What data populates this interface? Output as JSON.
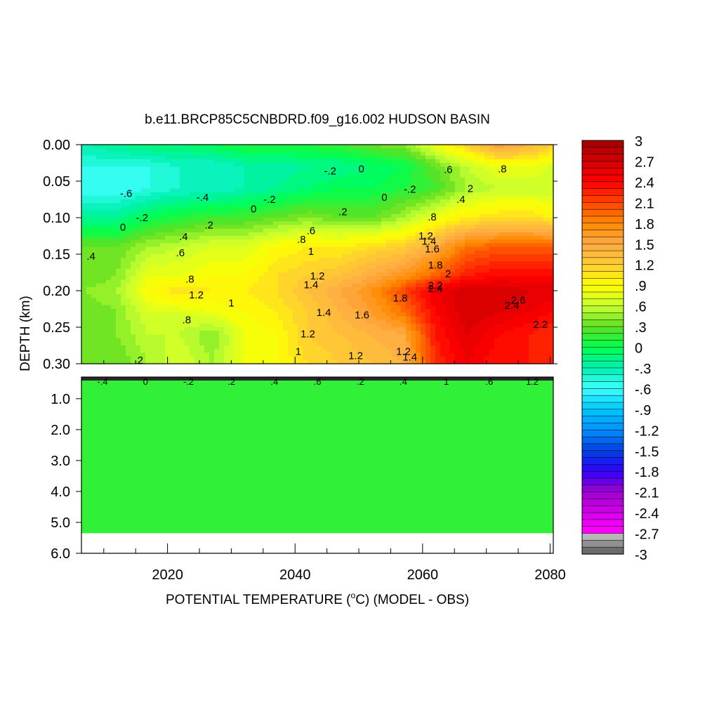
{
  "chart_data": {
    "type": "heatmap",
    "title": "b.e11.BRCP85C5CNBDRD.f09_g16.002 HUDSON BASIN",
    "xlabel_parts": [
      "POTENTIAL TEMPERATURE (",
      "o",
      "C) (MODEL - OBS)"
    ],
    "ylabel": "DEPTH (km)",
    "x_ticks": [
      "2020",
      "2040",
      "2060",
      "2080"
    ],
    "x_tick_values": [
      2020,
      2040,
      2060,
      2080
    ],
    "xlim": [
      2006.5,
      2080.5
    ],
    "upper_panel": {
      "ylim": [
        0.0,
        0.3
      ],
      "y_ticks": [
        "0.00",
        "0.05",
        "0.10",
        "0.15",
        "0.20",
        "0.25",
        "0.30"
      ],
      "y_tick_values": [
        0.0,
        0.05,
        0.1,
        0.15,
        0.2,
        0.25,
        0.3
      ]
    },
    "lower_panel": {
      "ylim": [
        0.3,
        6.0
      ],
      "y_ticks": [
        "1.0",
        "2.0",
        "3.0",
        "4.0",
        "5.0",
        "6.0"
      ],
      "y_tick_values": [
        1,
        2,
        3,
        4,
        5,
        6
      ],
      "data_bottom_depth": 5.35,
      "fill_value": 0.15,
      "surface_labels": [
        "-.4",
        "0",
        "-.2",
        ".2",
        ".4",
        ".6",
        ".2",
        ".4",
        "1",
        ".6",
        "1.2"
      ]
    },
    "colorbar": {
      "ticks": [
        "3",
        "2.7",
        "2.4",
        "2.1",
        "1.8",
        "1.5",
        "1.2",
        ".9",
        ".6",
        ".3",
        "0",
        "-.3",
        "-.6",
        "-.9",
        "-1.2",
        "-1.5",
        "-1.8",
        "-2.1",
        "-2.4",
        "-2.7",
        "-3"
      ],
      "min": -3.0,
      "max": 3.0,
      "interval": 0.1
    },
    "years": [
      2007,
      2012,
      2017,
      2022,
      2027,
      2032,
      2037,
      2042,
      2047,
      2052,
      2057,
      2062,
      2067,
      2072,
      2077,
      2080
    ],
    "depths": [
      0.0,
      0.03,
      0.06,
      0.1,
      0.14,
      0.18,
      0.2,
      0.23,
      0.26,
      0.3
    ],
    "values": [
      [
        -0.3,
        -0.2,
        -0.1,
        -0.1,
        0.0,
        0.1,
        0.1,
        0.1,
        0.2,
        0.3,
        0.4,
        0.8,
        1.2,
        1.6,
        1.4,
        1.2
      ],
      [
        -0.5,
        -0.5,
        -0.5,
        -0.4,
        -0.4,
        -0.3,
        -0.3,
        -0.2,
        -0.2,
        -0.1,
        0.0,
        0.3,
        0.6,
        0.8,
        0.8,
        0.7
      ],
      [
        -0.6,
        -0.6,
        -0.5,
        -0.4,
        -0.4,
        -0.3,
        -0.2,
        -0.1,
        0.0,
        0.0,
        0.1,
        0.2,
        0.5,
        0.6,
        0.6,
        0.6
      ],
      [
        -0.2,
        -0.2,
        0.0,
        0.1,
        0.2,
        0.2,
        0.3,
        0.4,
        0.3,
        0.3,
        0.5,
        0.8,
        1.0,
        1.1,
        1.1,
        1.0
      ],
      [
        0.3,
        0.3,
        0.5,
        0.6,
        0.7,
        0.7,
        0.9,
        1.0,
        1.0,
        1.1,
        1.2,
        1.5,
        1.9,
        2.0,
        2.0,
        2.0
      ],
      [
        0.3,
        0.4,
        0.8,
        0.8,
        0.9,
        0.9,
        1.1,
        1.2,
        1.3,
        1.5,
        1.7,
        2.0,
        2.3,
        2.4,
        2.4,
        2.4
      ],
      [
        0.4,
        0.5,
        0.9,
        1.1,
        1.0,
        1.0,
        1.1,
        1.3,
        1.5,
        1.7,
        2.1,
        2.5,
        2.7,
        2.7,
        2.6,
        2.6
      ],
      [
        0.3,
        0.4,
        0.7,
        0.7,
        0.8,
        0.9,
        1.0,
        1.2,
        1.4,
        1.6,
        1.9,
        2.4,
        2.7,
        2.6,
        2.5,
        2.4
      ],
      [
        0.4,
        0.4,
        0.6,
        0.6,
        0.4,
        0.8,
        0.9,
        1.2,
        1.3,
        1.4,
        1.5,
        2.3,
        2.6,
        2.4,
        2.3,
        2.2
      ],
      [
        0.3,
        0.3,
        0.5,
        0.7,
        0.5,
        0.8,
        0.9,
        1.1,
        1.2,
        1.3,
        1.4,
        2.2,
        2.5,
        2.3,
        2.3,
        2.2
      ]
    ],
    "contour_labels": [
      {
        "t": "-.2",
        "x": 2045.5,
        "y": 0.036
      },
      {
        "t": "0",
        "x": 2050.4,
        "y": 0.033
      },
      {
        "t": "-.6",
        "x": 2013.5,
        "y": 0.067
      },
      {
        "t": "-.4",
        "x": 2025.5,
        "y": 0.072
      },
      {
        "t": "-.2",
        "x": 2036.0,
        "y": 0.075
      },
      {
        "t": "0",
        "x": 2054.0,
        "y": 0.072
      },
      {
        "t": "-.2",
        "x": 2058.0,
        "y": 0.061
      },
      {
        "t": ".6",
        "x": 2064.0,
        "y": 0.034
      },
      {
        "t": "0",
        "x": 2033.5,
        "y": 0.088
      },
      {
        "t": ".2",
        "x": 2047.5,
        "y": 0.092
      },
      {
        "t": "-.2",
        "x": 2016.0,
        "y": 0.1
      },
      {
        "t": "0",
        "x": 2013.0,
        "y": 0.113
      },
      {
        "t": ".2",
        "x": 2026.5,
        "y": 0.11
      },
      {
        "t": ".4",
        "x": 2022.5,
        "y": 0.126
      },
      {
        "t": ".6",
        "x": 2022.0,
        "y": 0.148
      },
      {
        "t": ".8",
        "x": 2041.0,
        "y": 0.13
      },
      {
        "t": ".6",
        "x": 2042.5,
        "y": 0.118
      },
      {
        "t": "1",
        "x": 2042.5,
        "y": 0.146
      },
      {
        "t": ".8",
        "x": 2061.5,
        "y": 0.099
      },
      {
        "t": "1.2",
        "x": 2060.5,
        "y": 0.125
      },
      {
        "t": "1.4",
        "x": 2061.0,
        "y": 0.132
      },
      {
        "t": "1.6",
        "x": 2061.5,
        "y": 0.143
      },
      {
        "t": "1.8",
        "x": 2062.0,
        "y": 0.165
      },
      {
        "t": "2",
        "x": 2064.0,
        "y": 0.177
      },
      {
        "t": ".8",
        "x": 2023.5,
        "y": 0.184
      },
      {
        "t": "1.2",
        "x": 2024.5,
        "y": 0.206
      },
      {
        "t": "1",
        "x": 2030.0,
        "y": 0.217
      },
      {
        "t": "1.2",
        "x": 2043.5,
        "y": 0.18
      },
      {
        "t": "1.4",
        "x": 2042.5,
        "y": 0.192
      },
      {
        "t": "1.4",
        "x": 2044.5,
        "y": 0.23
      },
      {
        "t": "1.6",
        "x": 2050.5,
        "y": 0.233
      },
      {
        "t": "1.8",
        "x": 2056.5,
        "y": 0.21
      },
      {
        "t": "2.2",
        "x": 2062.0,
        "y": 0.193
      },
      {
        "t": "2.4",
        "x": 2062.0,
        "y": 0.197
      },
      {
        "t": "2.6",
        "x": 2075.0,
        "y": 0.213
      },
      {
        "t": "2.2",
        "x": 2078.5,
        "y": 0.246
      },
      {
        "t": "1.2",
        "x": 2042.0,
        "y": 0.259
      },
      {
        "t": "1",
        "x": 2040.5,
        "y": 0.283
      },
      {
        "t": "1.2",
        "x": 2049.5,
        "y": 0.289
      },
      {
        "t": "1.2",
        "x": 2057.0,
        "y": 0.283
      },
      {
        "t": "1.4",
        "x": 2058.0,
        "y": 0.291
      },
      {
        "t": ".8",
        "x": 2023.0,
        "y": 0.24
      },
      {
        "t": ".2",
        "x": 2015.5,
        "y": 0.295
      },
      {
        "t": ".4",
        "x": 2008.0,
        "y": 0.153
      },
      {
        "t": ".4",
        "x": 2066.0,
        "y": 0.075
      },
      {
        "t": "2",
        "x": 2067.5,
        "y": 0.06
      },
      {
        "t": ".8",
        "x": 2072.5,
        "y": 0.033
      },
      {
        "t": "2.4",
        "x": 2074.0,
        "y": 0.22
      }
    ]
  }
}
